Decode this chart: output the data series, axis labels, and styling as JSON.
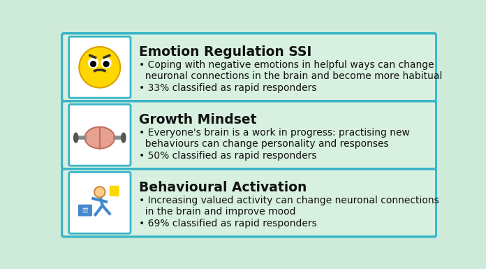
{
  "background_color": "#cdebd8",
  "card_bg_color": "#d8f0e0",
  "card_border_color": "#3ab5c8",
  "title_color": "#111111",
  "text_color": "#111111",
  "cards": [
    {
      "title": "Emotion Regulation SSI",
      "bullet1": "Coping with negative emotions in helpful ways can change\n  neuronal connections in the brain and become more habitual",
      "bullet2": "33% classified as rapid responders"
    },
    {
      "title": "Growth Mindset",
      "bullet1": "Everyone's brain is a work in progress: practising new\n  behaviours can change personality and responses",
      "bullet2": "50% classified as rapid responders"
    },
    {
      "title": "Behavioural Activation",
      "bullet1": "Increasing valued activity can change neuronal connections\n  in the brain and improve mood",
      "bullet2": "69% classified as rapid responders"
    }
  ],
  "title_fontsize": 13.5,
  "body_fontsize": 10,
  "figsize": [
    6.96,
    3.85
  ],
  "dpi": 100
}
